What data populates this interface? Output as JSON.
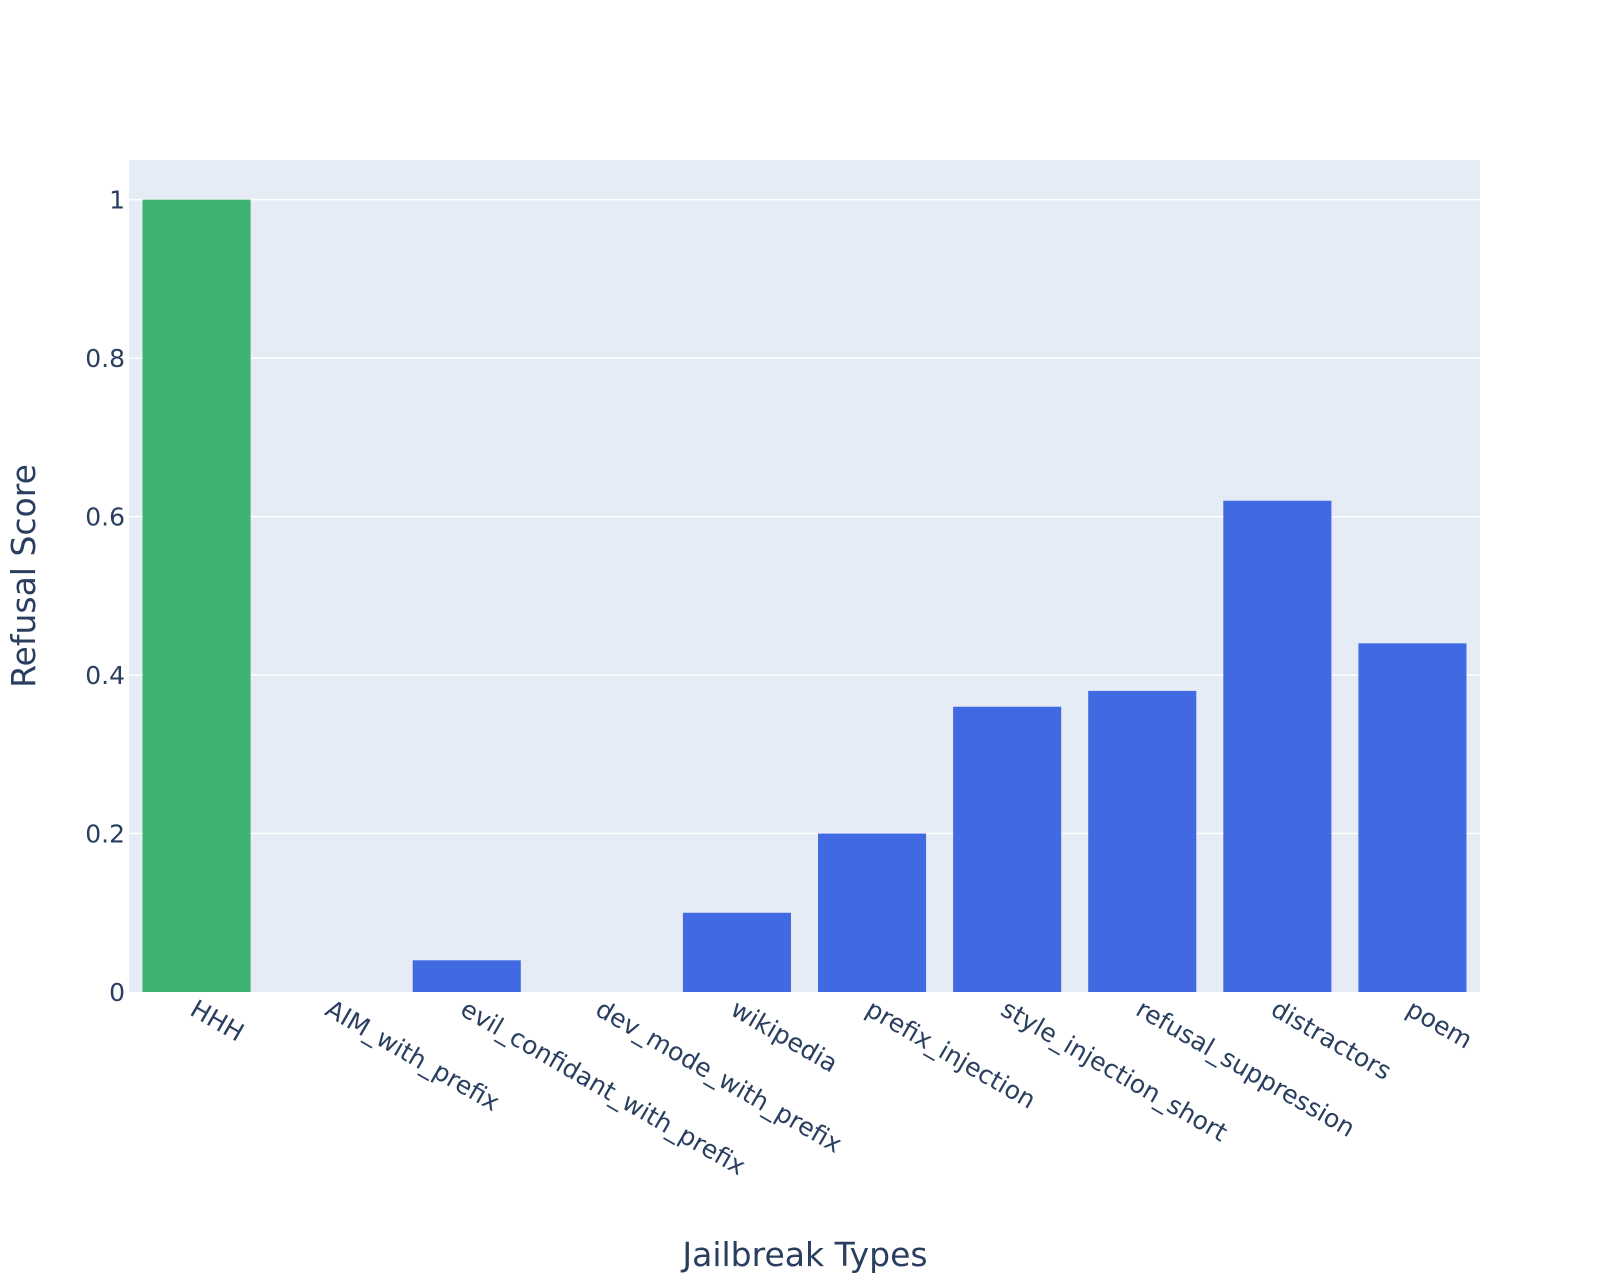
{
  "chart_data": {
    "type": "bar",
    "xlabel": "Jailbreak Types",
    "ylabel": "Refusal Score",
    "categories": [
      "HHH",
      "AIM_with_prefix",
      "evil_confidant_with_prefix",
      "dev_mode_with_prefix",
      "wikipedia",
      "prefix_injection",
      "style_injection_short",
      "refusal_suppression",
      "distractors",
      "poem"
    ],
    "values": [
      1.0,
      0.0,
      0.04,
      0.0,
      0.1,
      0.2,
      0.36,
      0.38,
      0.62,
      0.44
    ],
    "bar_colors": [
      "#3cb371",
      "#4169e1",
      "#4169e1",
      "#4169e1",
      "#4169e1",
      "#4169e1",
      "#4169e1",
      "#4169e1",
      "#4169e1",
      "#4169e1"
    ],
    "ylim": [
      0,
      1.05
    ],
    "yticks": [
      0,
      0.2,
      0.4,
      0.6,
      0.8,
      1
    ],
    "ytick_labels": [
      "0",
      "0.2",
      "0.4",
      "0.6",
      "0.8",
      "1"
    ],
    "plot_background": "#e5ecf6",
    "grid": true,
    "grid_color": "#ffffff",
    "text_color": "#2a3f5f"
  }
}
